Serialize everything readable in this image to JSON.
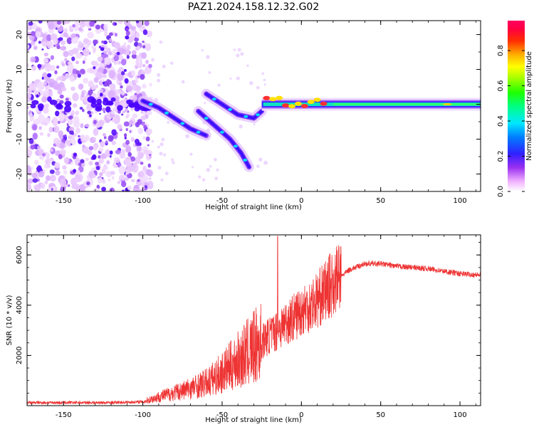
{
  "title": "PAZ1.2024.158.12.32.G02",
  "colorbar": {
    "label": "Normalized spectral amplitude",
    "ticks": [
      "0.0",
      "0.2",
      "0.4",
      "0.6",
      "0.8"
    ],
    "tick_values": [
      0.0,
      0.2,
      0.4,
      0.6,
      0.8
    ],
    "range": [
      0,
      0.97
    ]
  },
  "chart_data": [
    {
      "type": "heatmap",
      "xlabel": "Height of straight line (km)",
      "ylabel": "Frequency (Hz)",
      "xlim": [
        -173,
        113
      ],
      "ylim": [
        -25,
        24
      ],
      "xticks": [
        -150,
        -100,
        -50,
        0,
        50,
        100
      ],
      "yticks": [
        -20,
        -10,
        0,
        10,
        20
      ],
      "colormap": "rainbow (magenta-blue-cyan-green-yellow-red)",
      "features": {
        "noise_region_x": [
          -173,
          -95
        ],
        "carrier_tone_hz": 0,
        "carrier_x_range": [
          -25,
          113
        ],
        "descending_tracks": [
          {
            "x": [
              -100,
              -90,
              -80,
              -70,
              -60
            ],
            "y": [
              1,
              -1,
              -4,
              -7,
              -9
            ]
          },
          {
            "x": [
              -60,
              -50,
              -40,
              -30,
              -25
            ],
            "y": [
              3,
              0,
              -3,
              -4,
              -2
            ]
          },
          {
            "x": [
              -65,
              -55,
              -45,
              -38,
              -33
            ],
            "y": [
              -2,
              -6,
              -10,
              -14,
              -18
            ]
          }
        ]
      }
    },
    {
      "type": "line",
      "xlabel": "Height of straight line (km)",
      "ylabel": "SNR (10 * v/v)",
      "xlim": [
        -173,
        113
      ],
      "ylim": [
        0,
        6800
      ],
      "xticks": [
        -150,
        -100,
        -50,
        0,
        50,
        100
      ],
      "yticks": [
        2000,
        4000,
        6000
      ],
      "grid": false,
      "series": [
        {
          "color": "#ee3333",
          "envelope_x": [
            -173,
            -120,
            -100,
            -90,
            -75,
            -60,
            -50,
            -40,
            -30,
            -20,
            -15,
            -10,
            -5,
            0,
            10,
            20,
            30,
            40,
            50,
            60,
            70,
            80,
            90,
            100,
            113
          ],
          "envelope_y": [
            120,
            120,
            150,
            350,
            600,
            900,
            1300,
            1800,
            2300,
            2800,
            3000,
            3300,
            3500,
            3800,
            4200,
            4900,
            5400,
            5650,
            5650,
            5550,
            5500,
            5450,
            5350,
            5250,
            5200
          ],
          "peak": {
            "x": -15,
            "y": 6750
          }
        }
      ]
    }
  ]
}
